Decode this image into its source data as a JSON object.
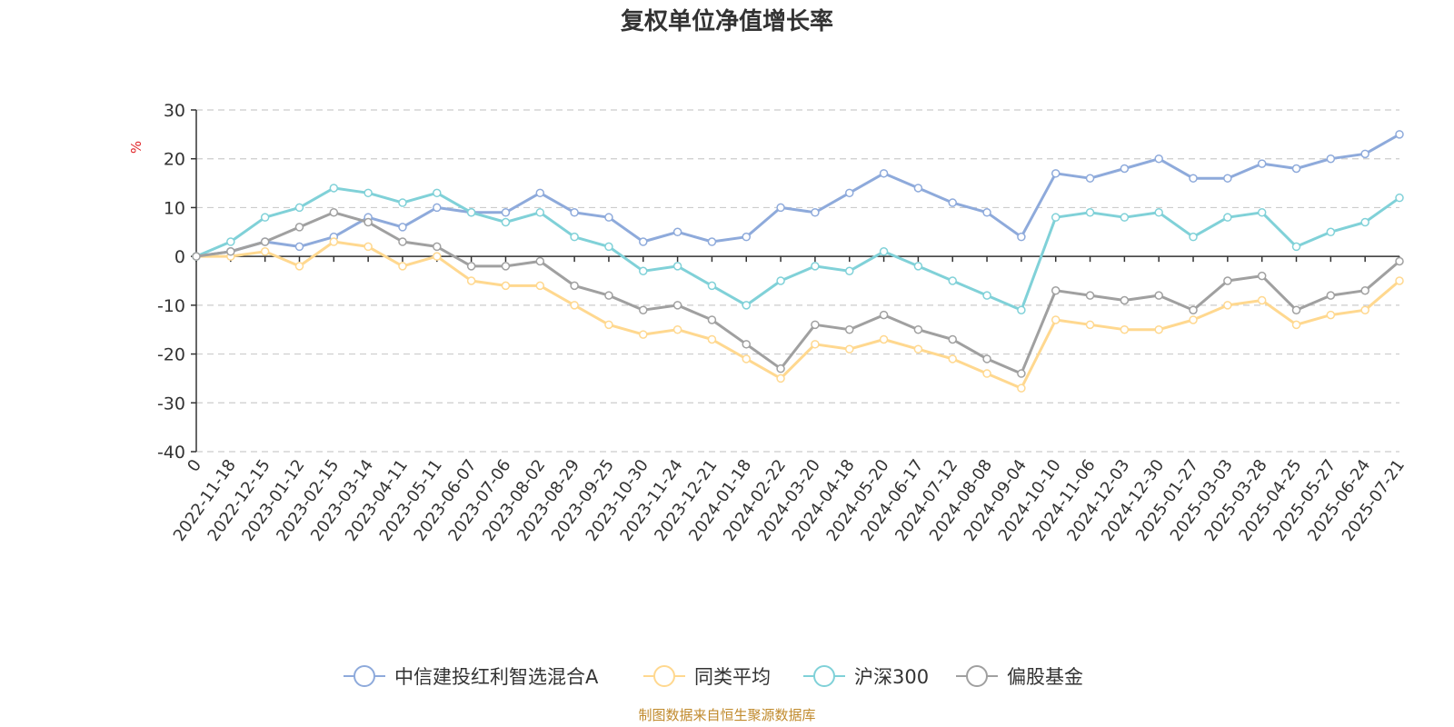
{
  "chart_data": {
    "type": "line",
    "title": "复权单位净值增长率",
    "ylabel": "%",
    "xlabel": "",
    "ylim": [
      -40,
      30
    ],
    "yticks": [
      30,
      20,
      10,
      0,
      -10,
      -20,
      -30,
      -40
    ],
    "grid": true,
    "legend_position": "bottom",
    "source_note": "制图数据来自恒生聚源数据库",
    "x": [
      "0",
      "2022-11-18",
      "2022-12-15",
      "2023-01-12",
      "2023-02-15",
      "2023-03-14",
      "2023-04-11",
      "2023-05-11",
      "2023-06-07",
      "2023-07-06",
      "2023-08-02",
      "2023-08-29",
      "2023-09-25",
      "2023-10-30",
      "2023-11-24",
      "2023-12-21",
      "2024-01-18",
      "2024-02-22",
      "2024-03-20",
      "2024-04-18",
      "2024-05-20",
      "2024-06-17",
      "2024-07-12",
      "2024-08-08",
      "2024-09-04",
      "2024-10-10",
      "2024-11-06",
      "2024-12-03",
      "2024-12-30",
      "2025-01-27",
      "2025-03-03",
      "2025-03-28",
      "2025-04-25",
      "2025-05-27",
      "2025-06-24",
      "2025-07-21"
    ],
    "series": [
      {
        "name": "中信建投红利智选混合A",
        "color": "#8eaadb",
        "values": [
          0,
          1,
          3,
          2,
          4,
          8,
          6,
          10,
          9,
          9,
          13,
          9,
          8,
          3,
          5,
          3,
          4,
          10,
          9,
          13,
          17,
          14,
          11,
          9,
          4,
          17,
          16,
          18,
          20,
          16,
          16,
          19,
          18,
          20,
          21,
          25
        ]
      },
      {
        "name": "同类平均",
        "color": "#ffd88f",
        "values": [
          0,
          0,
          1,
          -2,
          3,
          2,
          -2,
          0,
          -5,
          -6,
          -6,
          -10,
          -14,
          -16,
          -15,
          -17,
          -21,
          -25,
          -18,
          -19,
          -17,
          -19,
          -21,
          -24,
          -27,
          -13,
          -14,
          -15,
          -15,
          -13,
          -10,
          -9,
          -14,
          -12,
          -11,
          -5
        ]
      },
      {
        "name": "沪深300",
        "color": "#80d1d8",
        "values": [
          0,
          3,
          8,
          10,
          14,
          13,
          11,
          13,
          9,
          7,
          9,
          4,
          2,
          -3,
          -2,
          -6,
          -10,
          -5,
          -2,
          -3,
          1,
          -2,
          -5,
          -8,
          -11,
          8,
          9,
          8,
          9,
          4,
          8,
          9,
          2,
          5,
          7,
          12
        ]
      },
      {
        "name": "偏股基金",
        "color": "#a0a0a0",
        "values": [
          0,
          1,
          3,
          6,
          9,
          7,
          3,
          2,
          -2,
          -2,
          -1,
          -6,
          -8,
          -11,
          -10,
          -13,
          -18,
          -23,
          -14,
          -15,
          -12,
          -15,
          -17,
          -21,
          -24,
          -7,
          -8,
          -9,
          -8,
          -11,
          -5,
          -4,
          -11,
          -8,
          -7,
          -1
        ]
      }
    ]
  }
}
